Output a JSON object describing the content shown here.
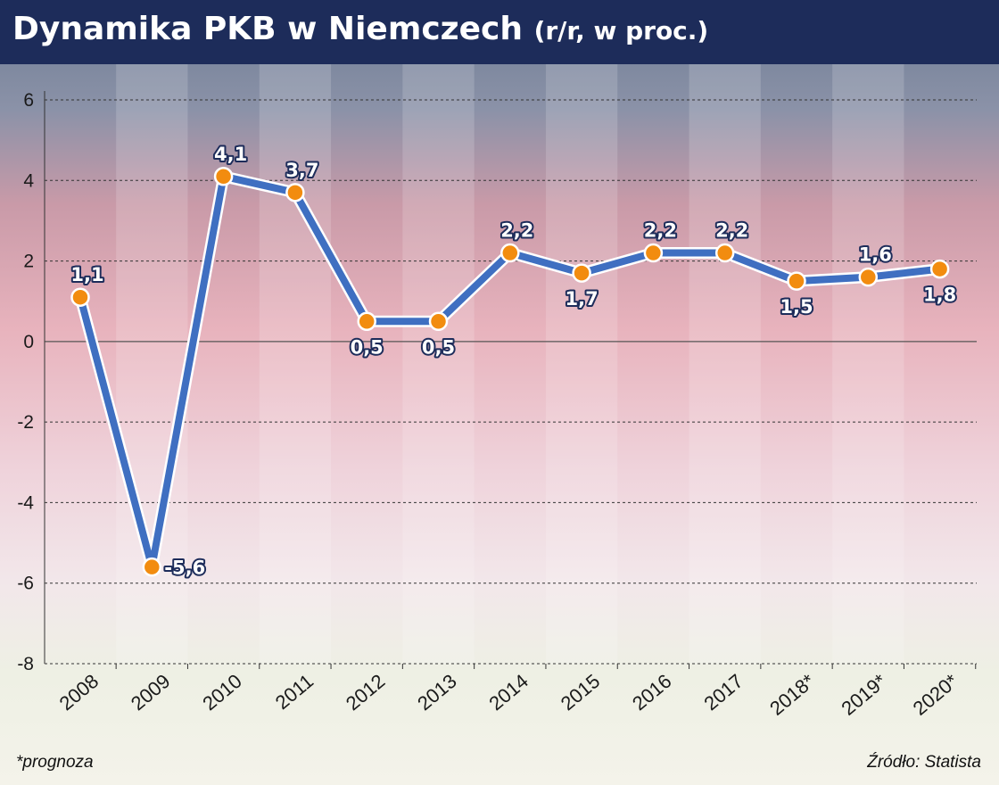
{
  "title": "Dynamika PKB w Niemczech",
  "title_suffix": "(r/r, w proc.)",
  "footnote": "*prognoza",
  "source": "Źródło: Statista",
  "colors": {
    "header": "#1d2c5a",
    "line": "#3f6fc1",
    "line_outline": "#ffffff",
    "marker": "#f28c0f"
  },
  "chart_data": {
    "type": "line",
    "title": "Dynamika PKB w Niemczech (r/r, w proc.)",
    "xlabel": "",
    "ylabel": "",
    "categories": [
      "2008",
      "2009",
      "2010",
      "2011",
      "2012",
      "2013",
      "2014",
      "2015",
      "2016",
      "2017",
      "2018*",
      "2019*",
      "2020*"
    ],
    "series": [
      {
        "values": [
          1.1,
          -5.6,
          4.1,
          3.7,
          0.5,
          0.5,
          2.2,
          1.7,
          2.2,
          2.2,
          1.5,
          1.6,
          1.8
        ]
      }
    ],
    "data_labels": [
      "1,1",
      "-5,6",
      "4,1",
      "3,7",
      "0,5",
      "0,5",
      "2,2",
      "1,7",
      "2,2",
      "2,2",
      "1,5",
      "1,6",
      "1,8"
    ],
    "label_positions": [
      "above",
      "right",
      "above",
      "above",
      "below",
      "below",
      "above",
      "below",
      "above",
      "above",
      "below",
      "above",
      "below"
    ],
    "ylim": [
      -8,
      6
    ],
    "yticks": [
      -8,
      -6,
      -4,
      -2,
      0,
      2,
      4,
      6
    ],
    "ytick_labels": [
      "-8",
      "-6",
      "-4",
      "-2",
      "0",
      "2",
      "4",
      "6"
    ],
    "grid": "horizontal dashed",
    "legend": "none"
  }
}
